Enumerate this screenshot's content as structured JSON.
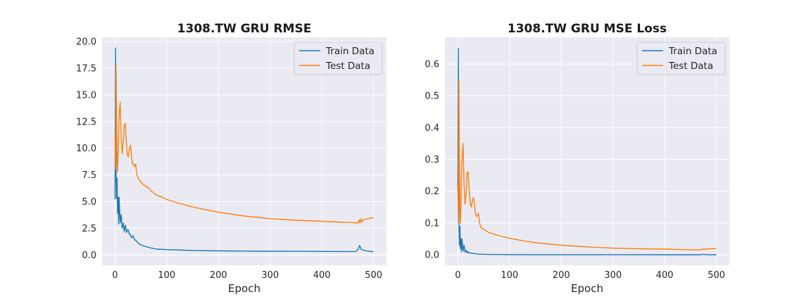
{
  "colors": {
    "train": "#1f77b4",
    "test": "#ff7f0e",
    "panel_bg": "#eaeaf2",
    "grid": "#ffffff"
  },
  "chart_data": [
    {
      "type": "line",
      "title": "1308.TW  GRU RMSE",
      "xlabel": "Epoch",
      "ylabel": "",
      "xlim": [
        -25,
        525
      ],
      "ylim": [
        -0.97,
        20.4
      ],
      "xticks": [
        0,
        100,
        200,
        300,
        400,
        500
      ],
      "yticks": [
        0.0,
        2.5,
        5.0,
        7.5,
        10.0,
        12.5,
        15.0,
        17.5,
        20.0
      ],
      "ytick_labels": [
        "0.0",
        "2.5",
        "5.0",
        "7.5",
        "10.0",
        "12.5",
        "15.0",
        "17.5",
        "20.0"
      ],
      "grid": true,
      "legend": "top-right",
      "series": [
        {
          "name": "Train Data",
          "color_key": "train",
          "x": [
            0,
            1,
            2,
            3,
            4,
            5,
            6,
            7,
            8,
            10,
            12,
            14,
            16,
            18,
            20,
            22,
            25,
            28,
            30,
            32,
            35,
            38,
            40,
            45,
            50,
            55,
            60,
            70,
            80,
            100,
            150,
            200,
            250,
            300,
            350,
            400,
            450,
            465,
            470,
            473,
            476,
            480,
            490,
            500
          ],
          "y": [
            5.2,
            19.4,
            8.0,
            5.3,
            7.2,
            3.9,
            5.4,
            2.9,
            5.4,
            3.0,
            3.8,
            2.5,
            3.0,
            2.2,
            2.8,
            2.1,
            2.4,
            1.9,
            1.9,
            1.6,
            1.8,
            1.4,
            1.4,
            1.1,
            0.95,
            0.85,
            0.78,
            0.65,
            0.55,
            0.5,
            0.42,
            0.38,
            0.36,
            0.35,
            0.34,
            0.33,
            0.32,
            0.32,
            0.5,
            0.9,
            0.55,
            0.45,
            0.35,
            0.3
          ]
        },
        {
          "name": "Test Data",
          "color_key": "test",
          "x": [
            0,
            1,
            2,
            3,
            4,
            5,
            6,
            8,
            10,
            12,
            14,
            16,
            18,
            20,
            22,
            24,
            26,
            28,
            30,
            32,
            34,
            36,
            38,
            40,
            42,
            45,
            48,
            50,
            55,
            60,
            65,
            70,
            75,
            80,
            90,
            100,
            120,
            150,
            200,
            250,
            300,
            350,
            400,
            450,
            470,
            472,
            474,
            476,
            478,
            480,
            485,
            490,
            495,
            500
          ],
          "y": [
            11.0,
            8.0,
            17.8,
            13.0,
            9.0,
            7.8,
            9.5,
            13.0,
            14.3,
            11.0,
            9.5,
            10.5,
            12.2,
            12.3,
            10.5,
            9.3,
            9.2,
            10.0,
            10.3,
            9.2,
            8.5,
            8.5,
            8.3,
            8.5,
            7.6,
            7.2,
            7.0,
            6.8,
            6.6,
            6.4,
            6.3,
            6.0,
            5.8,
            5.6,
            5.45,
            5.2,
            4.9,
            4.5,
            4.0,
            3.65,
            3.4,
            3.25,
            3.15,
            3.05,
            3.0,
            3.3,
            3.0,
            3.4,
            3.1,
            3.3,
            3.35,
            3.4,
            3.45,
            3.5
          ]
        }
      ]
    },
    {
      "type": "line",
      "title": "1308.TW  GRU MSE Loss",
      "xlabel": "Epoch",
      "ylabel": "",
      "xlim": [
        -25,
        525
      ],
      "ylim": [
        -0.033,
        0.684
      ],
      "xticks": [
        0,
        100,
        200,
        300,
        400,
        500
      ],
      "yticks": [
        0.0,
        0.1,
        0.2,
        0.3,
        0.4,
        0.5,
        0.6
      ],
      "ytick_labels": [
        "0.0",
        "0.1",
        "0.2",
        "0.3",
        "0.4",
        "0.5",
        "0.6"
      ],
      "grid": true,
      "legend": "top-right",
      "series": [
        {
          "name": "Train Data",
          "color_key": "train",
          "x": [
            0,
            1,
            2,
            3,
            4,
            5,
            6,
            7,
            8,
            10,
            12,
            14,
            16,
            18,
            20,
            22,
            25,
            30,
            35,
            40,
            50,
            60,
            80,
            100,
            150,
            200,
            300,
            400,
            470,
            475,
            480,
            500
          ],
          "y": [
            0.2,
            0.65,
            0.11,
            0.03,
            0.09,
            0.02,
            0.05,
            0.01,
            0.05,
            0.012,
            0.03,
            0.008,
            0.015,
            0.006,
            0.01,
            0.005,
            0.006,
            0.004,
            0.003,
            0.002,
            0.0015,
            0.001,
            0.0008,
            0.0006,
            0.0005,
            0.0004,
            0.0004,
            0.0003,
            0.0003,
            0.002,
            0.0005,
            0.0003
          ]
        },
        {
          "name": "Test Data",
          "color_key": "test",
          "x": [
            0,
            1,
            2,
            3,
            4,
            5,
            6,
            7,
            8,
            10,
            12,
            14,
            16,
            18,
            20,
            22,
            24,
            26,
            28,
            30,
            32,
            34,
            36,
            38,
            40,
            42,
            45,
            50,
            55,
            60,
            65,
            70,
            80,
            90,
            100,
            120,
            150,
            200,
            250,
            300,
            350,
            400,
            450,
            470,
            472,
            474,
            476,
            478,
            480,
            490,
            500
          ],
          "y": [
            0.22,
            0.1,
            0.55,
            0.3,
            0.15,
            0.1,
            0.15,
            0.25,
            0.3,
            0.35,
            0.22,
            0.16,
            0.19,
            0.26,
            0.26,
            0.2,
            0.16,
            0.15,
            0.17,
            0.18,
            0.16,
            0.13,
            0.12,
            0.125,
            0.13,
            0.1,
            0.085,
            0.08,
            0.075,
            0.07,
            0.068,
            0.065,
            0.06,
            0.056,
            0.052,
            0.046,
            0.038,
            0.03,
            0.025,
            0.021,
            0.019,
            0.018,
            0.016,
            0.016,
            0.018,
            0.016,
            0.019,
            0.017,
            0.018,
            0.019,
            0.02
          ]
        }
      ]
    }
  ]
}
